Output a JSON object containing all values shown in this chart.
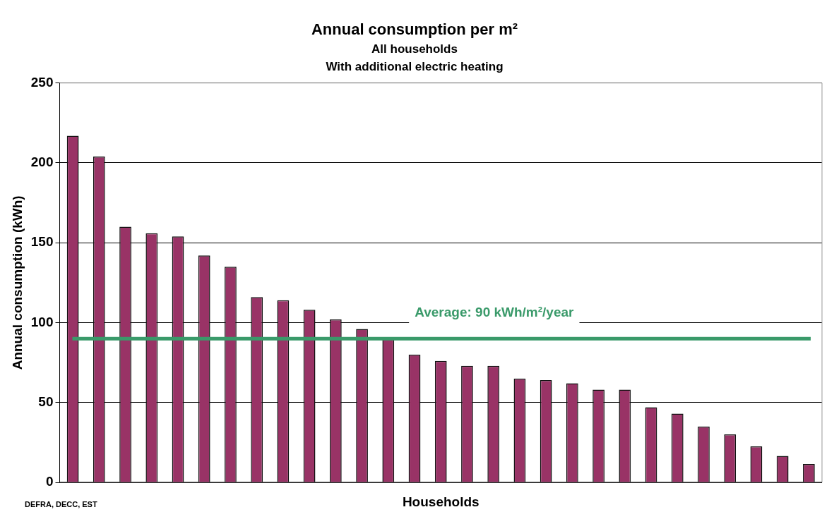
{
  "chart_data": {
    "type": "bar",
    "title": "Annual consumption per m²",
    "subtitle": "All households\nWith additional electric heating",
    "xlabel": "Households",
    "ylabel": "Annual consumption (kWh)",
    "categories": [
      null,
      null,
      null,
      null,
      null,
      null,
      null,
      null,
      null,
      null,
      null,
      null,
      null,
      null,
      null,
      null,
      null,
      null,
      null,
      null,
      null,
      null,
      null,
      null,
      null,
      null,
      null,
      null,
      null
    ],
    "values": [
      217,
      204,
      160,
      156,
      154,
      142,
      135,
      116,
      114,
      108,
      102,
      96,
      90,
      80,
      76,
      73,
      73,
      65,
      64,
      62,
      58,
      58,
      47,
      43,
      35,
      30,
      22.5,
      16.5,
      11.5
    ],
    "color": "#993366",
    "ylim": [
      0,
      250
    ],
    "yticks": [
      0,
      50,
      100,
      150,
      200,
      250
    ],
    "grid": "y",
    "legend": false,
    "ref_lines": [
      {
        "axis": "y",
        "value": 90,
        "label": "Average: 90 kWh/m²/year",
        "color": "#3a9a6a"
      }
    ],
    "annotations": [
      "DEFRA, DECC, EST"
    ]
  }
}
